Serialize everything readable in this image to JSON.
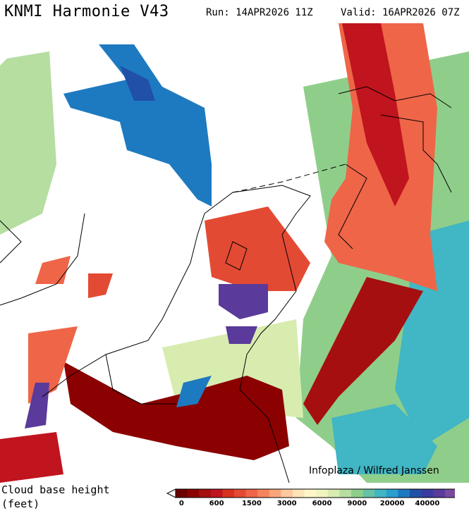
{
  "header": {
    "title": "KNMI Harmonie V43",
    "run": "Run: 14APR2026 11Z",
    "valid": "Valid: 16APR2026 07Z"
  },
  "map": {
    "credit": "Infoplaza / Wilfred Janssen"
  },
  "legend": {
    "label": [
      "Cloud base height",
      "(feet)"
    ],
    "colors": [
      "#6b0000",
      "#8b0000",
      "#a50f0f",
      "#c0141e",
      "#d7301f",
      "#e34a33",
      "#ef6548",
      "#f4845c",
      "#f9a57a",
      "#fcc89e",
      "#fde4b8",
      "#fff5c8",
      "#f0f5c0",
      "#d8ecb0",
      "#b5dea0",
      "#8fce8a",
      "#66c2a4",
      "#41b6c4",
      "#2c9ed0",
      "#1d7ac0",
      "#2050a8",
      "#3a3aa0",
      "#5a3a9a",
      "#7a4aa0"
    ],
    "ticks": [
      0,
      600,
      1500,
      3000,
      6000,
      9000,
      20000,
      40000
    ]
  }
}
